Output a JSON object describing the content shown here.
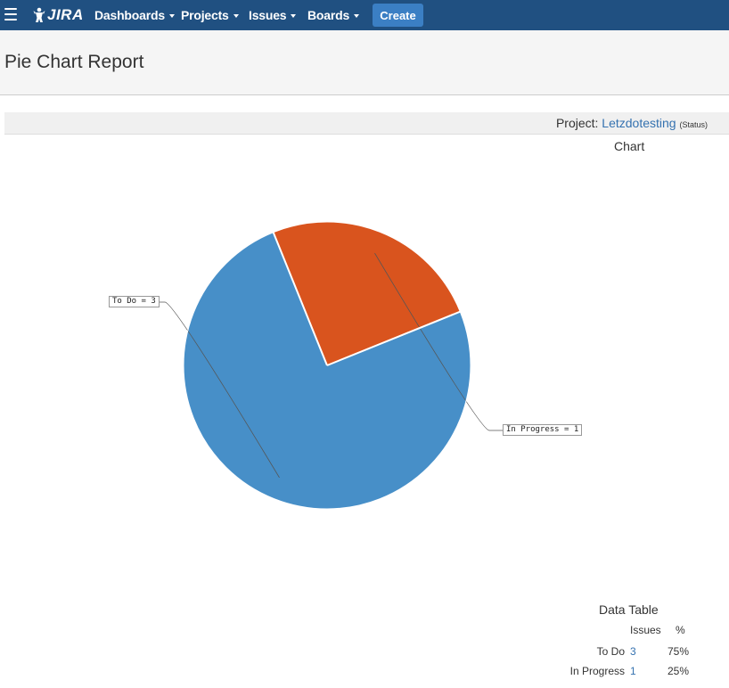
{
  "topbar": {
    "logo_text": "JIRA",
    "nav": [
      {
        "label": "Dashboards"
      },
      {
        "label": "Projects"
      },
      {
        "label": "Issues"
      },
      {
        "label": "Boards"
      }
    ],
    "create_label": "Create",
    "background_color": "#205081",
    "create_color": "#3b7fc4"
  },
  "page": {
    "title": "Pie Chart Report"
  },
  "report": {
    "project_prefix": "Project: ",
    "project_name": "Letzdotesting",
    "project_statistic": "(Status)",
    "chart_caption": "Chart"
  },
  "chart_data": {
    "type": "pie",
    "slices": [
      {
        "label": "To Do",
        "value": 3,
        "percent": 75,
        "color": "#478fc8",
        "callout": "To Do = 3"
      },
      {
        "label": "In Progress",
        "value": 1,
        "percent": 25,
        "color": "#d9541e",
        "callout": "In Progress = 1"
      }
    ]
  },
  "data_table": {
    "title": "Data Table",
    "headers": {
      "issues": "Issues",
      "percent": "%"
    },
    "rows": [
      {
        "category": "To Do",
        "issues": "3",
        "percent": "75%"
      },
      {
        "category": "In Progress",
        "issues": "1",
        "percent": "25%"
      }
    ]
  }
}
